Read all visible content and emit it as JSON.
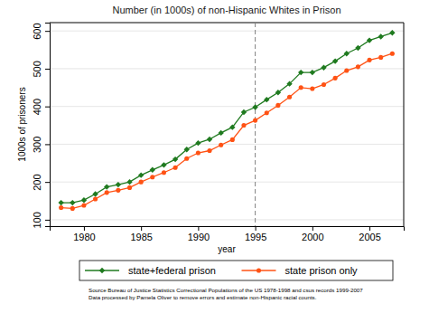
{
  "chart_data": {
    "type": "line",
    "title": "Number (in 1000s) of non-Hispanic Whites in Prison",
    "x_label": "year",
    "y_label": "1000s of prisoners",
    "x": [
      1978,
      1979,
      1980,
      1981,
      1982,
      1983,
      1984,
      1985,
      1986,
      1987,
      1988,
      1989,
      1990,
      1991,
      1992,
      1993,
      1994,
      1995,
      1996,
      1997,
      1998,
      1999,
      2000,
      2001,
      2002,
      2003,
      2004,
      2005,
      2006,
      2007
    ],
    "series": [
      {
        "name": "state+federal prison",
        "color": "#1f7a1f",
        "marker": "diamond",
        "values": [
          145,
          145,
          152,
          168,
          187,
          193,
          200,
          218,
          232,
          245,
          260,
          286,
          303,
          313,
          330,
          345,
          385,
          398,
          418,
          437,
          460,
          490,
          490,
          503,
          520,
          540,
          555,
          575,
          585,
          595
        ]
      },
      {
        "name": "state prison only",
        "color": "#ff5214",
        "marker": "circle",
        "values": [
          132,
          130,
          138,
          155,
          172,
          178,
          185,
          200,
          213,
          225,
          238,
          262,
          277,
          283,
          298,
          312,
          350,
          363,
          383,
          403,
          425,
          450,
          447,
          458,
          475,
          495,
          505,
          523,
          530,
          540
        ]
      }
    ],
    "xlim": [
      1977,
      2008
    ],
    "xticks": [
      1980,
      1985,
      1990,
      1995,
      2000,
      2005
    ],
    "ylim": [
      83,
      622
    ],
    "yticks": [
      100,
      200,
      300,
      400,
      500,
      600
    ],
    "vline": 1995,
    "grid": true,
    "legend": "bottom",
    "notes": [
      "Source Bureau of Justice Statistics Correctional Populations of the US 1978-1998 and csus records 1999-2007",
      "Data processed by Pamela Oliver to remove errors and estimate non-Hispanic racial counts."
    ]
  }
}
